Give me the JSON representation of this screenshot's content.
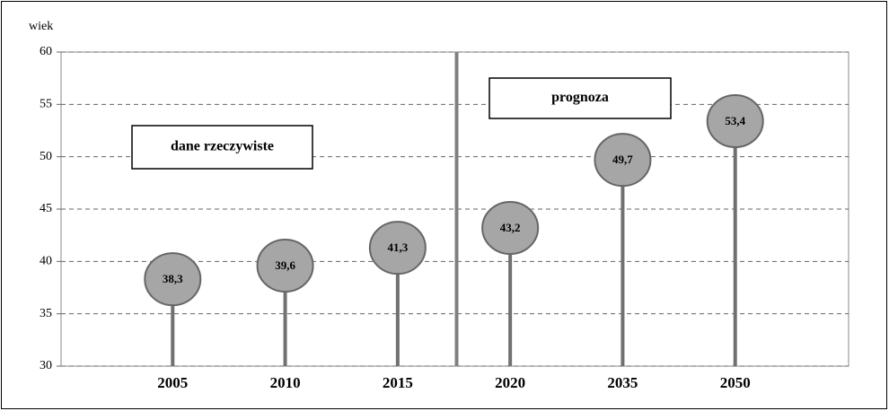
{
  "chart_data": {
    "type": "lollipop",
    "y_label": "wiek",
    "categories": [
      "2005",
      "2010",
      "2015",
      "2020",
      "2035",
      "2050"
    ],
    "values": [
      38.3,
      39.6,
      41.3,
      43.2,
      49.7,
      53.4
    ],
    "value_labels": [
      "38,3",
      "39,6",
      "41,3",
      "43,2",
      "49,7",
      "53,4"
    ],
    "color": "#a6a6a6",
    "ylim": [
      30,
      60
    ],
    "yticks": [
      30,
      35,
      40,
      45,
      50,
      55,
      60
    ],
    "grid": true,
    "annotations": [
      "dane rzeczywiste",
      "prognoza"
    ]
  }
}
